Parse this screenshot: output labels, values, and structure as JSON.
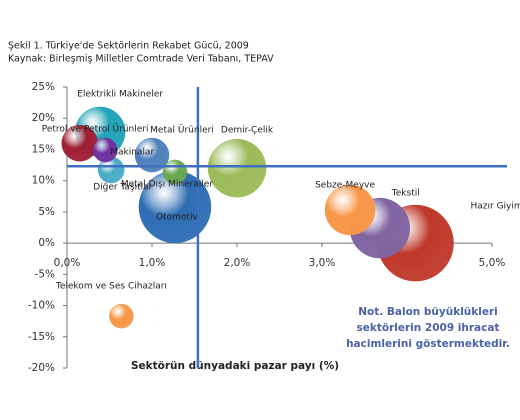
{
  "chart_data": {
    "type": "bubble",
    "title": "Şekil 1. Türkiye'de Sektörlerin Rekabet Gücü, 2009",
    "subtitle": "Kaynak: Birleşmiş Milletler Comtrade Veri Tabanı, TEPAV",
    "x_label": "Sektörün dünyadaki pazar payı (%)",
    "note": [
      "Not. Balon büyüklükleri",
      "sektörlerin 2009 ihracat",
      "hacimlerini göstermektedir."
    ],
    "xlim": [
      0,
      5
    ],
    "xticks": [
      {
        "value": 0,
        "label": "0,0%"
      },
      {
        "value": 1,
        "label": "1,0%"
      },
      {
        "value": 2,
        "label": "2,0%"
      },
      {
        "value": 3,
        "label": "3,0%"
      },
      {
        "value": 4,
        "label": "4,0%"
      },
      {
        "value": 5,
        "label": "5,0%"
      }
    ],
    "ylim": [
      -20,
      25
    ],
    "yticks": [
      {
        "value": -20,
        "label": "-20%"
      },
      {
        "value": -15,
        "label": "-15%"
      },
      {
        "value": -10,
        "label": "-10%"
      },
      {
        "value": -5,
        "label": "-5%"
      },
      {
        "value": 0,
        "label": "0%"
      },
      {
        "value": 5,
        "label": "5%"
      },
      {
        "value": 10,
        "label": "10%"
      },
      {
        "value": 15,
        "label": "15%"
      },
      {
        "value": 20,
        "label": "20%"
      },
      {
        "value": 25,
        "label": "25%"
      }
    ],
    "reference_lines": {
      "x": 1.54,
      "y": 12.3,
      "color": "#3f6fc0"
    },
    "points": [
      {
        "name": "Hazır Giyim",
        "x": 4.1,
        "y": 0,
        "size": 38,
        "color": "#c0392b"
      },
      {
        "name": "Tekstil",
        "x": 3.68,
        "y": 2.4,
        "size": 30,
        "color": "#8064a2"
      },
      {
        "name": "Sebze-Meyve",
        "x": 3.33,
        "y": 5.3,
        "size": 25,
        "color": "#f79646"
      },
      {
        "name": "Otomotiv",
        "x": 1.27,
        "y": 5.8,
        "size": 36,
        "color": "#2e6db4"
      },
      {
        "name": "Demir-Çelik",
        "x": 2.0,
        "y": 12.0,
        "size": 29,
        "color": "#9bbb59"
      },
      {
        "name": "Elektrikli Makineler",
        "x": 0.39,
        "y": 17.8,
        "size": 25,
        "color": "#1fa3b8"
      },
      {
        "name": "Petrol ve Petrol Ürünleri",
        "x": 0.15,
        "y": 16.0,
        "size": 18,
        "color": "#a01f35"
      },
      {
        "name": "Makinalar",
        "x": 0.45,
        "y": 14.9,
        "size": 12,
        "color": "#7030a0"
      },
      {
        "name": "Metal Ürünleri",
        "x": 1.0,
        "y": 14.1,
        "size": 17,
        "color": "#4f81bd"
      },
      {
        "name": "Diğer Taşıtlar",
        "x": 0.52,
        "y": 11.7,
        "size": 13,
        "color": "#4bacc6"
      },
      {
        "name": "Metal Dışı Mineraller",
        "x": 1.27,
        "y": 11.4,
        "size": 12,
        "color": "#6aa84f"
      },
      {
        "name": "Telekom ve Ses Cihazları",
        "x": 0.64,
        "y": -11.7,
        "size": 12,
        "color": "#f79646"
      }
    ]
  }
}
